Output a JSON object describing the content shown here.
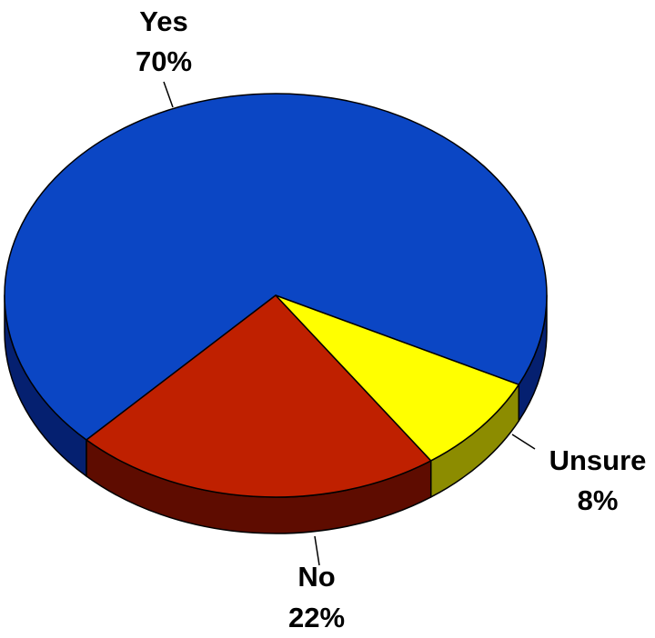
{
  "chart_data": {
    "type": "pie",
    "style": "3d",
    "slices": [
      {
        "name": "Yes",
        "value": 70,
        "label": "70%",
        "color": "#0B46C4",
        "side_color": "#052070"
      },
      {
        "name": "Unsure",
        "value": 8,
        "label": "8%",
        "color": "#FFFF00",
        "side_color": "#8C8C00"
      },
      {
        "name": "No",
        "value": 22,
        "label": "22%",
        "color": "#BF2000",
        "side_color": "#5E0C00"
      }
    ],
    "title": "",
    "legend": "none",
    "labels": "outside with leader lines"
  }
}
